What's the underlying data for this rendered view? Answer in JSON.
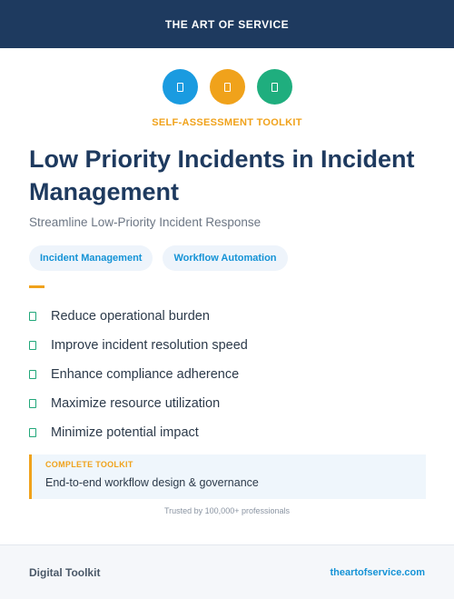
{
  "header": {
    "brand": "THE ART OF SERVICE"
  },
  "icons": [
    {
      "name": "blue-badge-icon",
      "color": "#1a9be0"
    },
    {
      "name": "orange-badge-icon",
      "color": "#f0a21b"
    },
    {
      "name": "green-badge-icon",
      "color": "#1fae7e"
    }
  ],
  "kicker": "SELF-ASSESSMENT TOOLKIT",
  "title": "Low Priority Incidents in Incident Management",
  "subtitle": "Streamline Low-Priority Incident Response",
  "tags": [
    "Incident Management",
    "Workflow Automation"
  ],
  "benefits": [
    "Reduce operational burden",
    "Improve incident resolution speed",
    "Enhance compliance adherence",
    "Maximize resource utilization",
    "Minimize potential impact"
  ],
  "callout": {
    "label": "COMPLETE TOOLKIT",
    "text": "End-to-end workflow design & governance"
  },
  "trusted": "Trusted by 100,000+ professionals",
  "footer": {
    "left": "Digital Toolkit",
    "right": "theartofservice.com"
  },
  "colors": {
    "navy": "#1e3a5f",
    "accent": "#f0a21b",
    "link": "#1593d6",
    "check": "#21a77a"
  }
}
